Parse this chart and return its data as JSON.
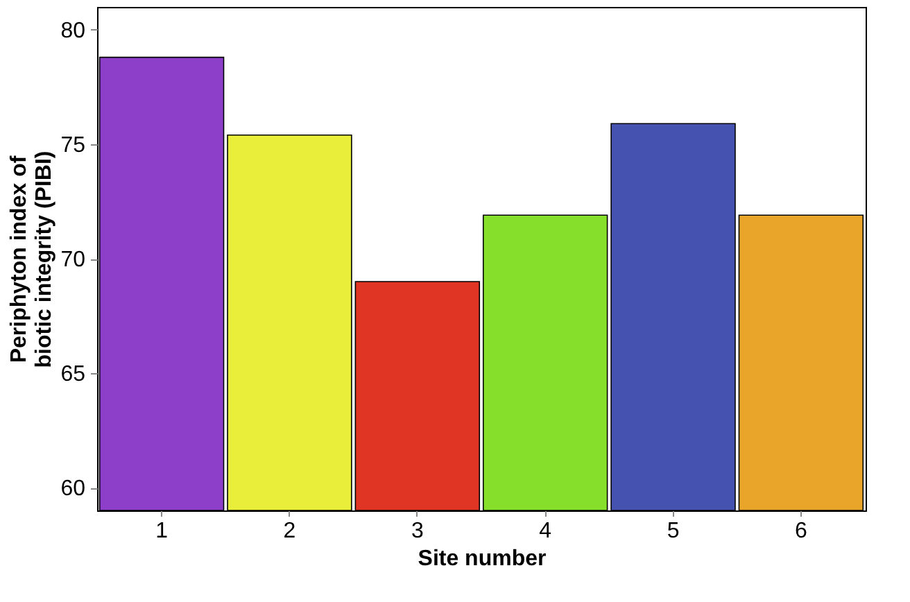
{
  "chart_data": {
    "type": "bar",
    "xlabel": "Site number",
    "ylabel": "Periphyton index of\nbiotic integrity (PIBI)",
    "categories": [
      "1",
      "2",
      "3",
      "4",
      "5",
      "6"
    ],
    "values": [
      78.8,
      75.4,
      69.0,
      71.9,
      75.9,
      71.9
    ],
    "colors": [
      "#8e3fc9",
      "#e8ee3a",
      "#e03424",
      "#86df2a",
      "#4552b0",
      "#e8a52a"
    ],
    "ylim": [
      59,
      81
    ],
    "yticks": [
      60,
      65,
      70,
      75,
      80
    ],
    "grid": false
  }
}
